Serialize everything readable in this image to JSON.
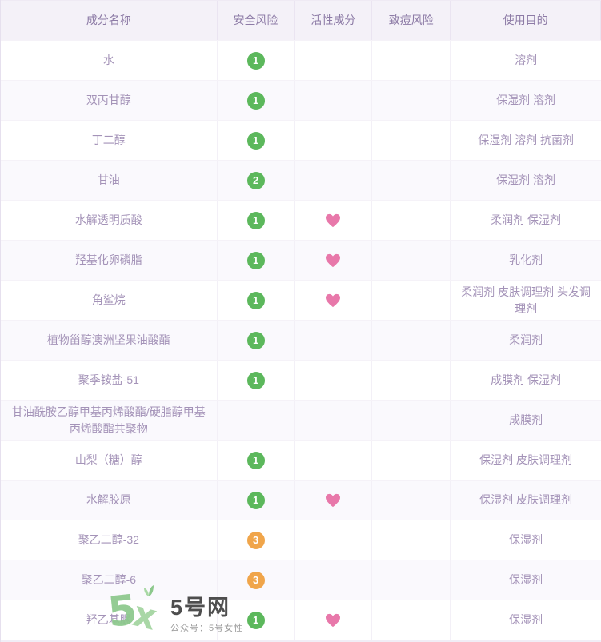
{
  "colors": {
    "green": "#5cb85c",
    "orange": "#f0a54a",
    "pink": "#e878aa",
    "header_text": "#8d7ba6",
    "body_text": "#a493b8"
  },
  "table": {
    "columns": [
      "成分名称",
      "安全风险",
      "活性成分",
      "致痘风险",
      "使用目的"
    ],
    "rows": [
      {
        "name": "水",
        "safety": "1",
        "safety_color": "green",
        "active": false,
        "acne": "",
        "purpose": "溶剂"
      },
      {
        "name": "双丙甘醇",
        "safety": "1",
        "safety_color": "green",
        "active": false,
        "acne": "",
        "purpose": "保湿剂 溶剂"
      },
      {
        "name": "丁二醇",
        "safety": "1",
        "safety_color": "green",
        "active": false,
        "acne": "",
        "purpose": "保湿剂 溶剂 抗菌剂"
      },
      {
        "name": "甘油",
        "safety": "2",
        "safety_color": "green",
        "active": false,
        "acne": "",
        "purpose": "保湿剂 溶剂"
      },
      {
        "name": "水解透明质酸",
        "safety": "1",
        "safety_color": "green",
        "active": true,
        "acne": "",
        "purpose": "柔润剂 保湿剂"
      },
      {
        "name": "羟基化卵磷脂",
        "safety": "1",
        "safety_color": "green",
        "active": true,
        "acne": "",
        "purpose": "乳化剂"
      },
      {
        "name": "角鲨烷",
        "safety": "1",
        "safety_color": "green",
        "active": true,
        "acne": "",
        "purpose": "柔润剂 皮肤调理剂 头发调理剂"
      },
      {
        "name": "植物甾醇澳洲坚果油酸酯",
        "safety": "1",
        "safety_color": "green",
        "active": false,
        "acne": "",
        "purpose": "柔润剂"
      },
      {
        "name": "聚季铵盐-51",
        "safety": "1",
        "safety_color": "green",
        "active": false,
        "acne": "",
        "purpose": "成膜剂 保湿剂"
      },
      {
        "name": "甘油酰胺乙醇甲基丙烯酸酯/硬脂醇甲基丙烯酸酯共聚物",
        "safety": "",
        "safety_color": "",
        "active": false,
        "acne": "",
        "purpose": "成膜剂"
      },
      {
        "name": "山梨（糖）醇",
        "safety": "1",
        "safety_color": "green",
        "active": false,
        "acne": "",
        "purpose": "保湿剂 皮肤调理剂"
      },
      {
        "name": "水解胶原",
        "safety": "1",
        "safety_color": "green",
        "active": true,
        "acne": "",
        "purpose": "保湿剂 皮肤调理剂"
      },
      {
        "name": "聚乙二醇-32",
        "safety": "3",
        "safety_color": "orange",
        "active": false,
        "acne": "",
        "purpose": "保湿剂"
      },
      {
        "name": "聚乙二醇-6",
        "safety": "3",
        "safety_color": "orange",
        "active": false,
        "acne": "",
        "purpose": "保湿剂"
      },
      {
        "name": "羟乙基脲",
        "safety": "1",
        "safety_color": "green",
        "active": true,
        "acne": "",
        "purpose": "保湿剂"
      }
    ]
  },
  "watermark": {
    "logo_text_5": "5",
    "logo_text_x": "x",
    "site_name": "5号网",
    "subtitle": "公众号：5号女性"
  }
}
